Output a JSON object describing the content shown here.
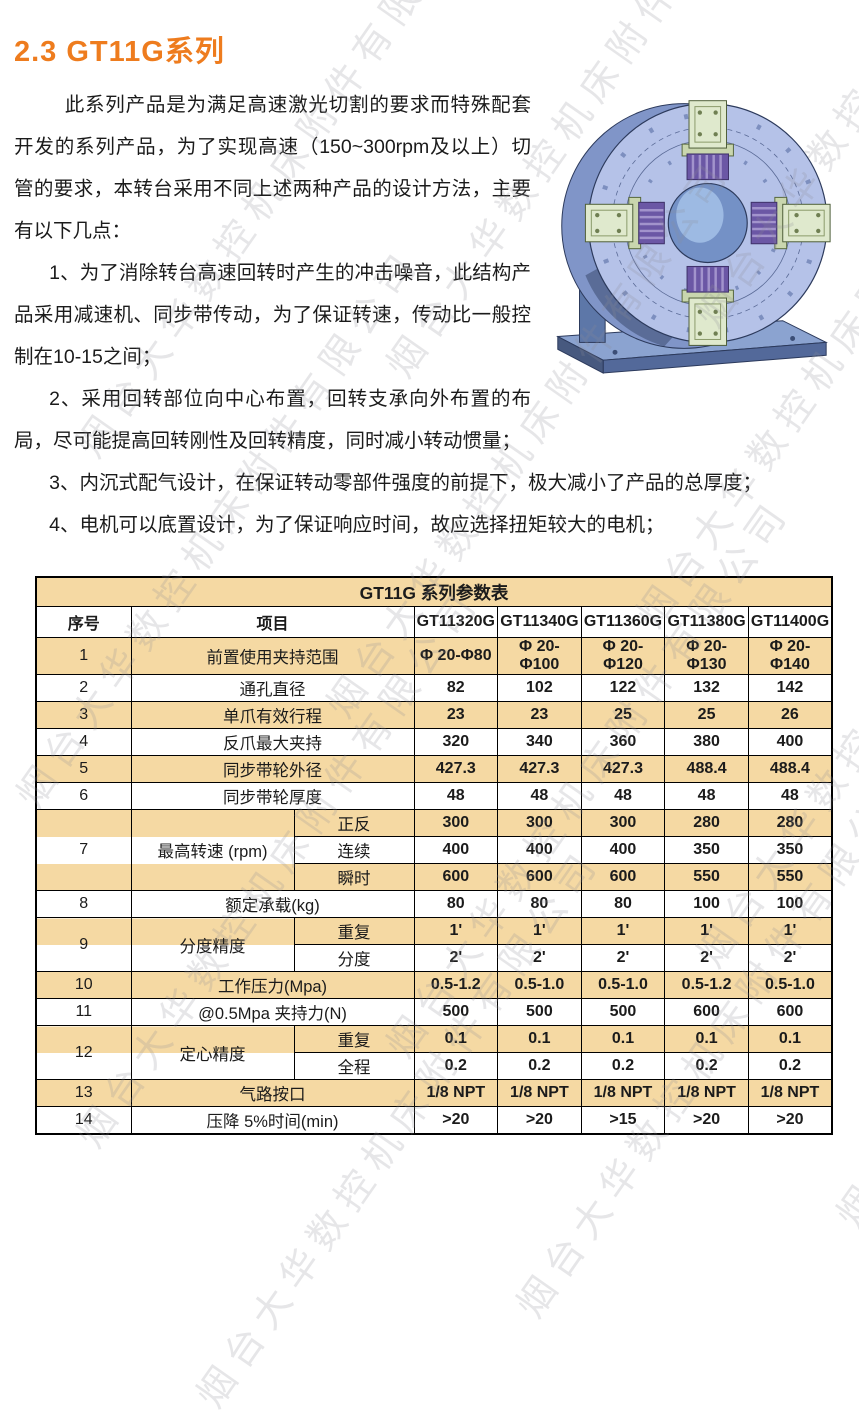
{
  "page": {
    "title": "2.3  GT11G系列",
    "watermark_text": "烟台大华数控机床附件有限公司"
  },
  "colors": {
    "accent": "#EE7C1E",
    "table_stripe": "#F5D9A3",
    "table_border": "#000000",
    "watermark_gray": "#8C8C96",
    "figure_disc": "#B5C2E8",
    "figure_rim": "#8095C8",
    "figure_base": "#6D87B8",
    "figure_jaw": "#DFE9CD",
    "figure_bellows": "#6B57A5",
    "figure_bore": "#7491C6"
  },
  "body": {
    "intro": "此系列产品是为满足高速激光切割的要求而特殊配套开发的系列产品，为了实现高速（150~300rpm及以上）切管的要求，本转台采用不同上述两种产品的设计方法，主要有以下几点：",
    "points": [
      "1、为了消除转台高速回转时产生的冲击噪音，此结构产品采用减速机、同步带传动，为了保证转速，传动比一般控制在10-15之间；",
      "2、采用回转部位向中心布置，回转支承向外布置的布局，尽可能提高回转刚性及回转精度，同时减小转动惯量；",
      "3、内沉式配气设计，在保证转动零部件强度的前提下，极大减小了产品的总厚度；",
      "4、电机可以底置设计，为了保证响应时间，故应选择扭矩较大的电机；"
    ]
  },
  "figure": {
    "description": "GT11G 系列高速回转台三维渲染图（四爪气动卡盘，同步带轮转台）"
  },
  "table": {
    "title": "GT11G 系列参数表",
    "columns": [
      "序号",
      "项目",
      "GT11320G",
      "GT11340G",
      "GT11360G",
      "GT11380G",
      "GT11400G"
    ],
    "rows": [
      {
        "no": "1",
        "item": "前置使用夹持范围",
        "shade": "tan",
        "values": [
          "Φ 20-Φ80",
          "Φ 20-Φ100",
          "Φ 20-Φ120",
          "Φ 20-Φ130",
          "Φ 20-Φ140"
        ]
      },
      {
        "no": "2",
        "item": "通孔直径",
        "shade": "white",
        "values": [
          "82",
          "102",
          "122",
          "132",
          "142"
        ]
      },
      {
        "no": "3",
        "item": "单爪有效行程",
        "shade": "tan",
        "values": [
          "23",
          "23",
          "25",
          "25",
          "26"
        ]
      },
      {
        "no": "4",
        "item": "反爪最大夹持",
        "shade": "white",
        "values": [
          "320",
          "340",
          "360",
          "380",
          "400"
        ]
      },
      {
        "no": "5",
        "item": "同步带轮外径",
        "shade": "tan",
        "values": [
          "427.3",
          "427.3",
          "427.3",
          "488.4",
          "488.4"
        ]
      },
      {
        "no": "6",
        "item": "同步带轮厚度",
        "shade": "white",
        "values": [
          "48",
          "48",
          "48",
          "48",
          "48"
        ]
      },
      {
        "no": "7",
        "item": "最高转速 (rpm)",
        "subs": [
          {
            "label": "正反",
            "shade": "tan",
            "values": [
              "300",
              "300",
              "300",
              "280",
              "280"
            ]
          },
          {
            "label": "连续",
            "shade": "white",
            "values": [
              "400",
              "400",
              "400",
              "350",
              "350"
            ]
          },
          {
            "label": "瞬时",
            "shade": "tan",
            "values": [
              "600",
              "600",
              "600",
              "550",
              "550"
            ]
          }
        ]
      },
      {
        "no": "8",
        "item": "额定承载(kg)",
        "shade": "white",
        "values": [
          "80",
          "80",
          "80",
          "100",
          "100"
        ]
      },
      {
        "no": "9",
        "item": "分度精度",
        "subs": [
          {
            "label": "重复",
            "shade": "tan",
            "values": [
              "1'",
              "1'",
              "1'",
              "1'",
              "1'"
            ]
          },
          {
            "label": "分度",
            "shade": "white",
            "values": [
              "2'",
              "2'",
              "2'",
              "2'",
              "2'"
            ]
          }
        ]
      },
      {
        "no": "10",
        "item": "工作压力(Mpa)",
        "shade": "tan",
        "values": [
          "0.5-1.2",
          "0.5-1.0",
          "0.5-1.0",
          "0.5-1.2",
          "0.5-1.0"
        ]
      },
      {
        "no": "11",
        "item": "@0.5Mpa 夹持力(N)",
        "shade": "white",
        "values": [
          "500",
          "500",
          "500",
          "600",
          "600"
        ]
      },
      {
        "no": "12",
        "item": "定心精度",
        "subs": [
          {
            "label": "重复",
            "shade": "tan",
            "values": [
              "0.1",
              "0.1",
              "0.1",
              "0.1",
              "0.1"
            ]
          },
          {
            "label": "全程",
            "shade": "white",
            "values": [
              "0.2",
              "0.2",
              "0.2",
              "0.2",
              "0.2"
            ]
          }
        ]
      },
      {
        "no": "13",
        "item": "气路按口",
        "shade": "tan",
        "values": [
          "1/8 NPT",
          "1/8 NPT",
          "1/8 NPT",
          "1/8 NPT",
          "1/8 NPT"
        ]
      },
      {
        "no": "14",
        "item": "压降 5%时间(min)",
        "shade": "white",
        "values": [
          ">20",
          ">20",
          ">15",
          ">20",
          ">20"
        ]
      }
    ]
  }
}
